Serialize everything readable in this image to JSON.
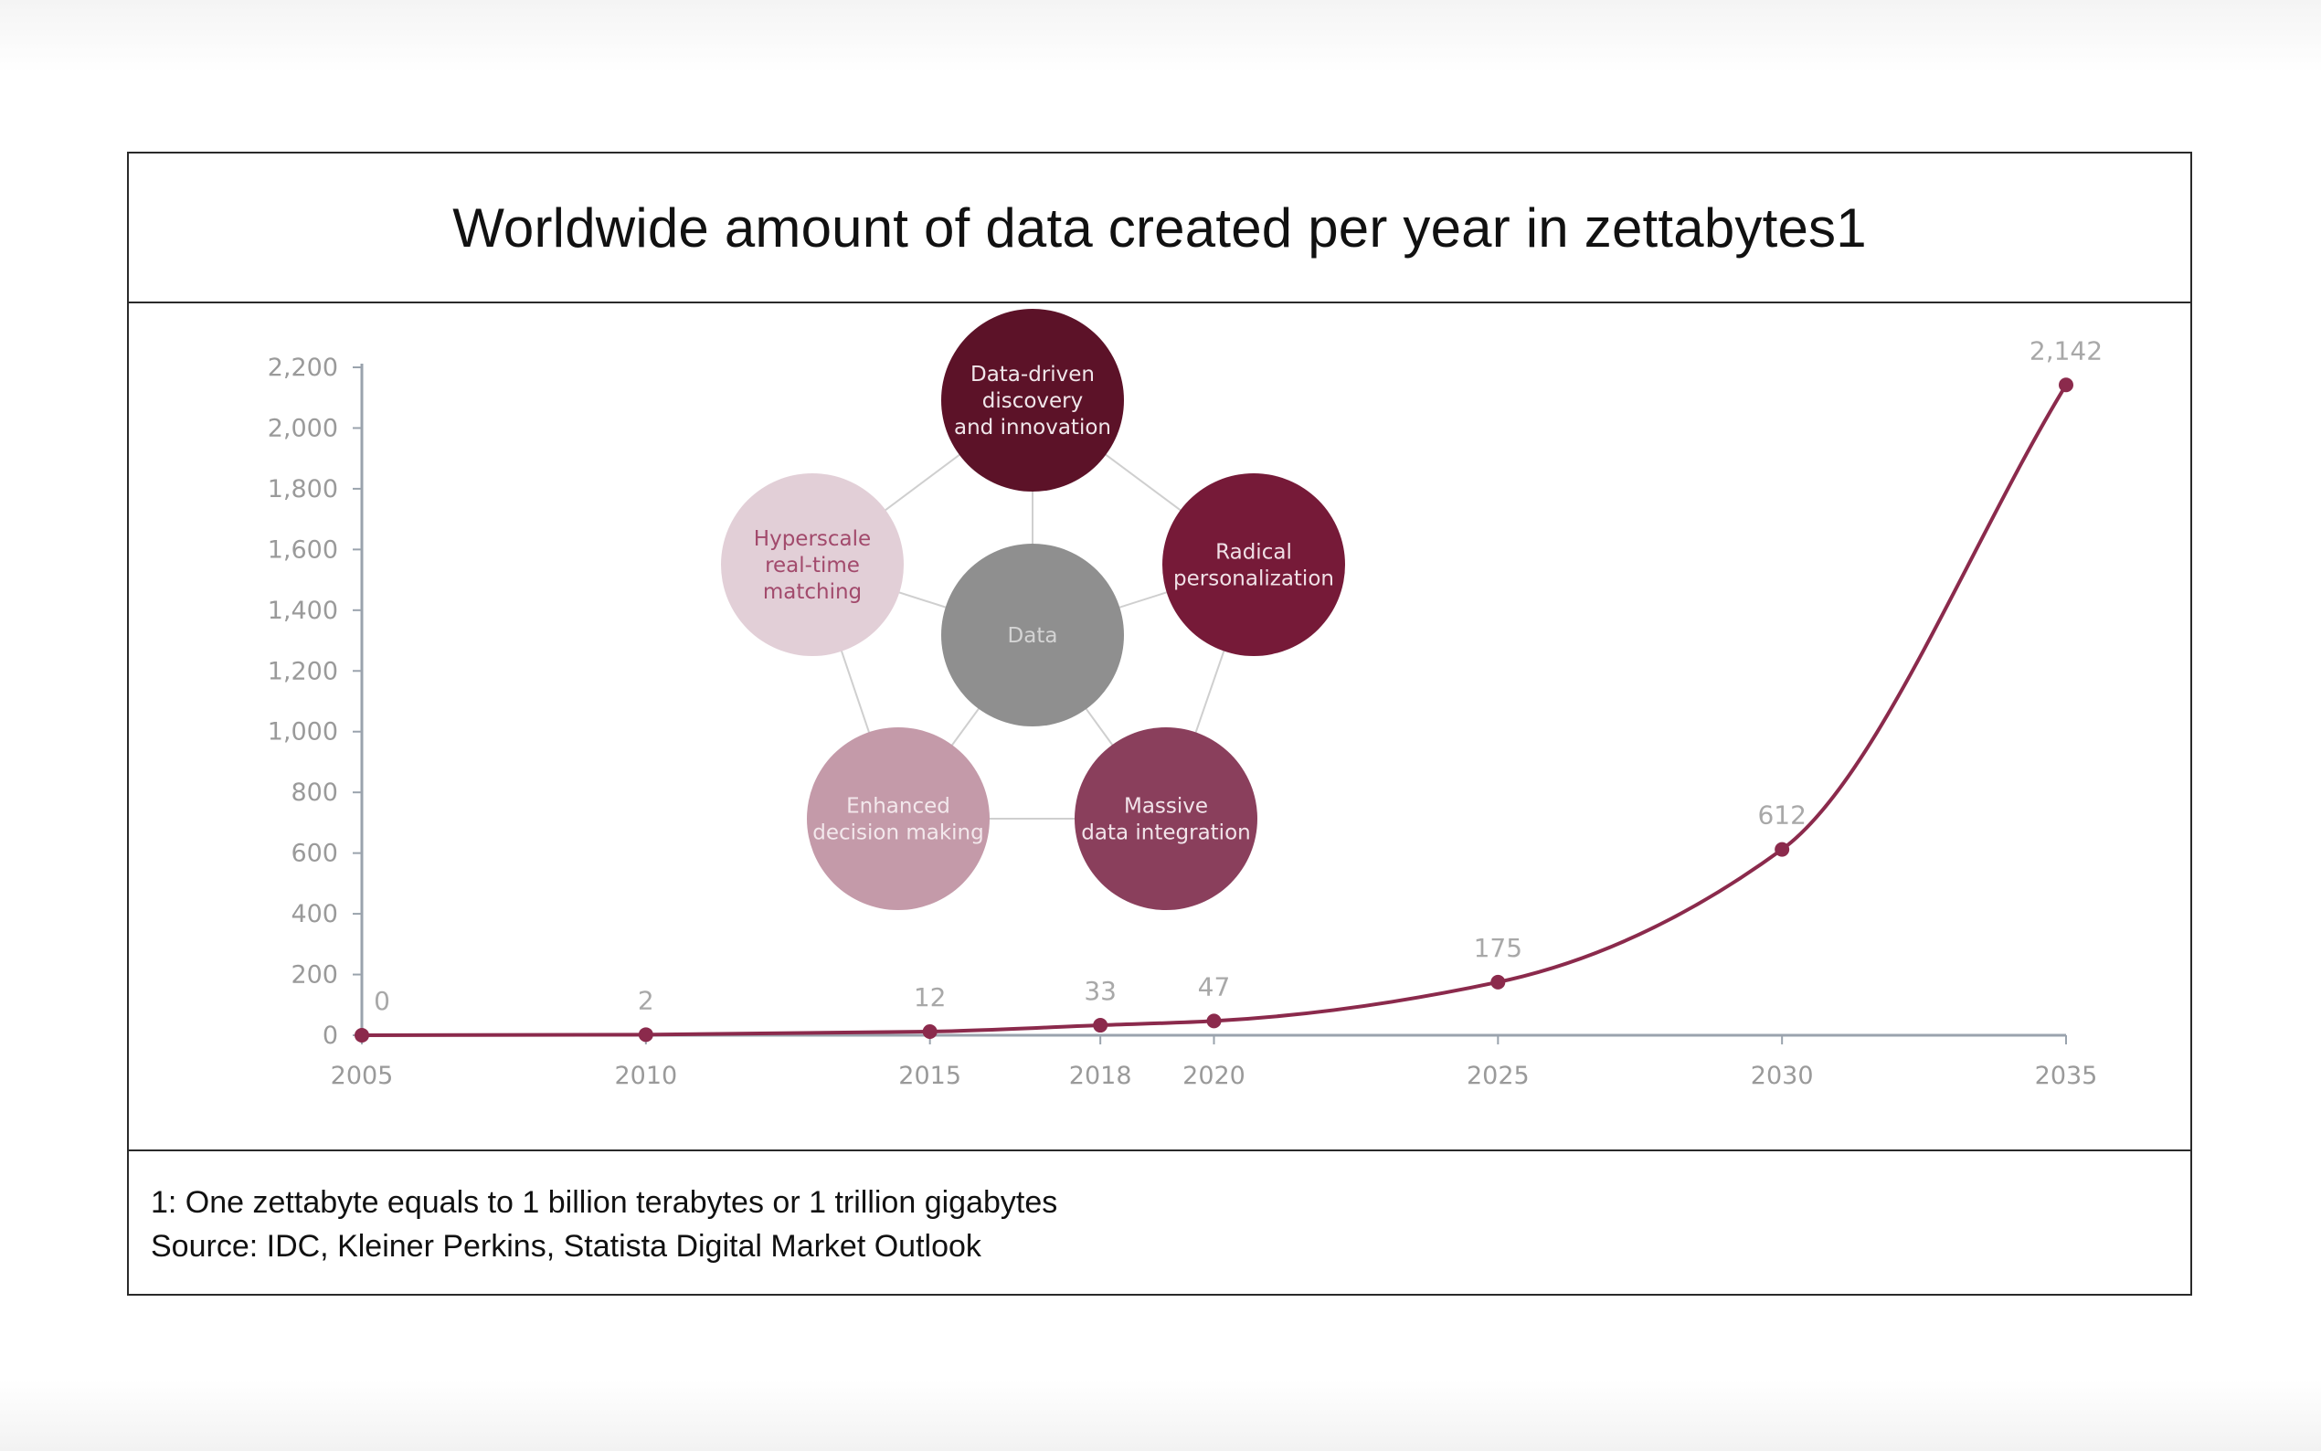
{
  "header": {
    "title": "Worldwide amount of data created per year in zettabytes1"
  },
  "footer": {
    "note": "1: One zettabyte equals to 1 billion terabytes or 1 trillion gigabytes",
    "source": "Source: IDC, Kleiner Perkins, Statista Digital Market Outlook"
  },
  "colors": {
    "line": "#8b2a4c",
    "axis": "#9aa3ad",
    "tick_text": "#9a9a9a",
    "bubble_dark": "#5c1228",
    "bubble_red": "#761a38",
    "bubble_mid": "#8a3f5c",
    "bubble_rose": "#c49aa9",
    "bubble_light": "#e2cfd7",
    "bubble_grey": "#8f8f8f"
  },
  "diagram": {
    "center": {
      "label": "Data",
      "color": "#8f8f8f",
      "text_color": "#d4d4d4"
    },
    "nodes": [
      {
        "label_lines": [
          "Data-driven",
          "discovery",
          "and innovation"
        ],
        "color": "#5c1228",
        "text_color": "#f0e6ea"
      },
      {
        "label_lines": [
          "Radical",
          "personalization"
        ],
        "color": "#761a38",
        "text_color": "#f0e0e6"
      },
      {
        "label_lines": [
          "Massive",
          "data integration"
        ],
        "color": "#8a3f5c",
        "text_color": "#f2e4ea"
      },
      {
        "label_lines": [
          "Enhanced",
          "decision making"
        ],
        "color": "#c49aa9",
        "text_color": "#f3e8ec"
      },
      {
        "label_lines": [
          "Hyperscale",
          "real-time",
          "matching"
        ],
        "color": "#e2cfd7",
        "text_color": "#a24a6c"
      }
    ]
  },
  "chart_data": {
    "type": "line",
    "title": "Worldwide amount of data created per year in zettabytes1",
    "xlabel": "",
    "ylabel": "",
    "ylim": [
      0,
      2200
    ],
    "xlim": [
      2005,
      2035
    ],
    "yticks": [
      0,
      200,
      400,
      600,
      800,
      1000,
      1200,
      1400,
      1600,
      1800,
      2000,
      2200
    ],
    "ytick_labels": [
      "0",
      "200",
      "400",
      "600",
      "800",
      "1,000",
      "1,200",
      "1,400",
      "1,600",
      "1,800",
      "2,000",
      "2,200"
    ],
    "xticks": [
      2005,
      2010,
      2015,
      2018,
      2020,
      2025,
      2030,
      2035
    ],
    "grid": false,
    "legend": "none",
    "points": [
      {
        "x": 2005,
        "y": 0,
        "label": "0"
      },
      {
        "x": 2010,
        "y": 2,
        "label": "2"
      },
      {
        "x": 2015,
        "y": 12,
        "label": "12"
      },
      {
        "x": 2018,
        "y": 33,
        "label": "33"
      },
      {
        "x": 2020,
        "y": 47,
        "label": "47"
      },
      {
        "x": 2025,
        "y": 175,
        "label": "175"
      },
      {
        "x": 2030,
        "y": 612,
        "label": "612"
      },
      {
        "x": 2035,
        "y": 2142,
        "label": "2,142"
      }
    ],
    "series": [
      {
        "values": [
          0,
          2,
          12,
          33,
          47,
          175,
          612,
          2142
        ]
      }
    ]
  }
}
